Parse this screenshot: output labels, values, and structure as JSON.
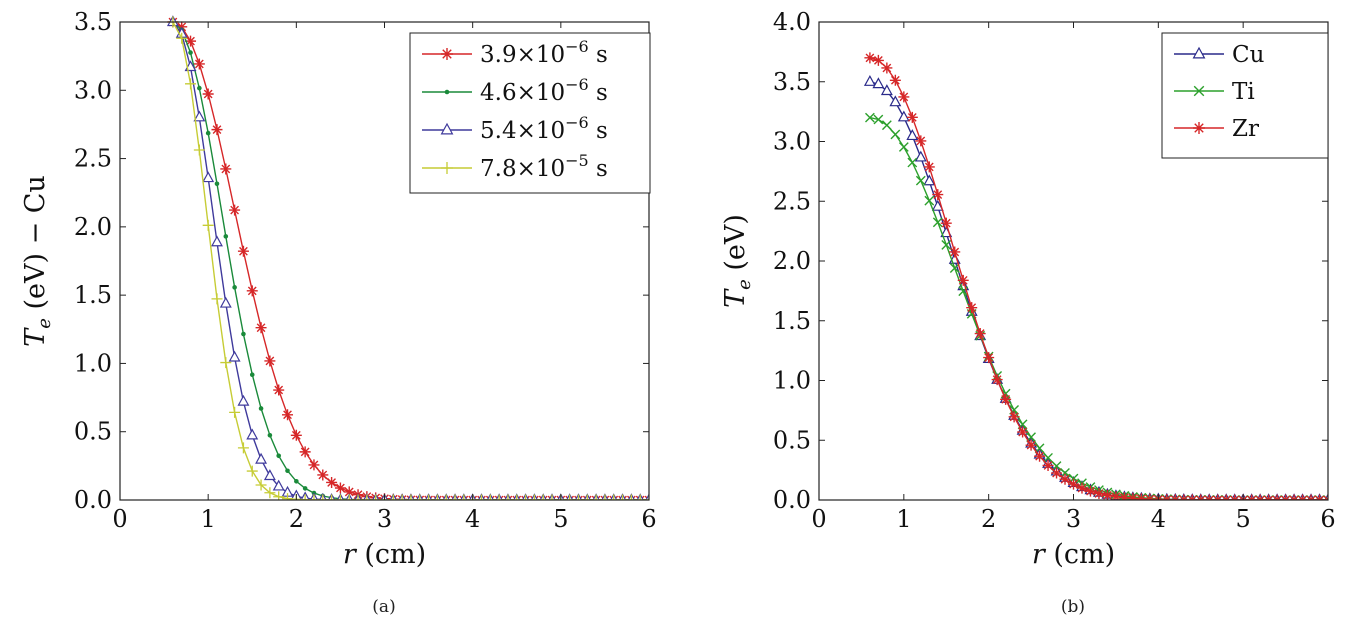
{
  "chart_data": [
    {
      "type": "line",
      "panel": "a",
      "caption": "(a)",
      "ylabel": "T_e (eV) − Cu",
      "ylabel_parts": {
        "t": "T",
        "sub": "e",
        "unit": " (eV) − Cu"
      },
      "xlabel": "r (cm)",
      "xlabel_parts": {
        "var": "r",
        "unit": " (cm)"
      },
      "xlim": [
        0,
        6
      ],
      "ylim": [
        0,
        3.5
      ],
      "xticks": [
        "0",
        "1",
        "2",
        "3",
        "4",
        "5",
        "6"
      ],
      "yticks": [
        "0.0",
        "0.5",
        "1.0",
        "1.5",
        "2.0",
        "2.5",
        "3.0",
        "3.5"
      ],
      "legend_position": "top-right",
      "series": [
        {
          "name": "3.9×10⁻⁶ s",
          "legend_base": "3.9×10",
          "legend_exp": "−6",
          "legend_unit": " s",
          "color": "#d62728",
          "marker": "star",
          "x0": 0.6,
          "dx": 0.1,
          "ymax": 3.5,
          "sigma": 0.7,
          "step": 1
        },
        {
          "name": "4.6×10⁻⁶ s",
          "legend_base": "4.6×10",
          "legend_exp": "−6",
          "legend_unit": " s",
          "color": "#1a8a3a",
          "marker": "dot",
          "x0": 0.6,
          "dx": 0.1,
          "ymax": 3.5,
          "sigma": 0.55,
          "step": 1
        },
        {
          "name": "5.4×10⁻⁶ s",
          "legend_base": "5.4×10",
          "legend_exp": "−6",
          "legend_unit": " s",
          "color": "#3f3a9c",
          "marker": "triangle",
          "x0": 0.6,
          "dx": 0.1,
          "ymax": 3.5,
          "sigma": 0.45,
          "step": 1
        },
        {
          "name": "7.8×10⁻⁵ s",
          "legend_base": "7.8×10",
          "legend_exp": "−5",
          "legend_unit": " s",
          "color": "#c6cc35",
          "marker": "plus",
          "x0": 0.6,
          "dx": 0.1,
          "ymax": 3.5,
          "sigma": 0.38,
          "step": 1
        }
      ]
    },
    {
      "type": "line",
      "panel": "b",
      "caption": "(b)",
      "ylabel": "T_e (eV)",
      "ylabel_parts": {
        "t": "T",
        "sub": "e",
        "unit": " (eV)"
      },
      "xlabel": "r (cm)",
      "xlabel_parts": {
        "var": "r",
        "unit": " (cm)"
      },
      "xlim": [
        0,
        6
      ],
      "ylim": [
        0,
        4.0
      ],
      "xticks": [
        "0",
        "1",
        "2",
        "3",
        "4",
        "5",
        "6"
      ],
      "yticks": [
        "0.0",
        "0.5",
        "1.0",
        "1.5",
        "2.0",
        "2.5",
        "3.0",
        "3.5",
        "4.0"
      ],
      "legend_position": "top-right",
      "series": [
        {
          "name": "Cu",
          "legend_base": "Cu",
          "color": "#2a2a8a",
          "marker": "triangle",
          "x0": 0.6,
          "dx": 0.1,
          "ymax": 3.5,
          "sigma": 0.95,
          "step": 1
        },
        {
          "name": "Ti",
          "legend_base": "Ti",
          "color": "#2ca02c",
          "marker": "x",
          "x0": 0.6,
          "dx": 0.1,
          "ymax": 3.2,
          "sigma": 1.0,
          "step": 1
        },
        {
          "name": "Zr",
          "legend_base": "Zr",
          "color": "#d62728",
          "marker": "star",
          "x0": 0.6,
          "dx": 0.1,
          "ymax": 3.7,
          "sigma": 0.93,
          "step": 1
        }
      ]
    }
  ]
}
